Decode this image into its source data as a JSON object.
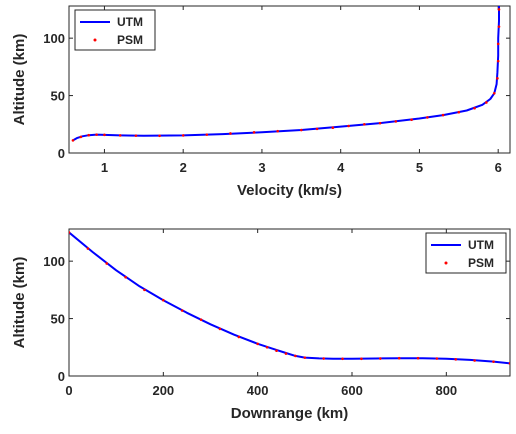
{
  "chart_data": [
    {
      "type": "line",
      "xlabel": "Velocity (km/s)",
      "ylabel": "Altitude (km)",
      "xlim": [
        0.55,
        6.15
      ],
      "ylim": [
        0,
        128
      ],
      "xticks": [
        1,
        2,
        3,
        4,
        5,
        6
      ],
      "yticks": [
        0,
        50,
        100
      ],
      "legend_position": "top-left",
      "series": [
        {
          "name": "UTM",
          "style": "solid line",
          "color": "#0000ff",
          "x": [
            0.6,
            0.65,
            0.72,
            0.8,
            0.9,
            1.0,
            1.2,
            1.5,
            2.0,
            2.5,
            3.0,
            3.5,
            4.0,
            4.5,
            5.0,
            5.3,
            5.6,
            5.8,
            5.9,
            5.95,
            5.98,
            5.99,
            6.0,
            6.0,
            6.01,
            6.01
          ],
          "y": [
            11,
            13,
            14.5,
            15.5,
            16,
            15.8,
            15.3,
            15,
            15.3,
            16.5,
            18,
            20,
            23,
            26,
            30,
            33,
            37,
            42,
            47,
            52,
            60,
            70,
            85,
            100,
            115,
            128
          ]
        },
        {
          "name": "PSM",
          "style": "dots",
          "color": "#ff0000",
          "x": [
            0.6,
            0.7,
            0.8,
            0.9,
            1.0,
            1.2,
            1.4,
            1.7,
            2.0,
            2.3,
            2.6,
            2.9,
            3.2,
            3.5,
            3.7,
            3.9,
            4.1,
            4.3,
            4.5,
            4.7,
            4.9,
            5.1,
            5.3,
            5.5,
            5.7,
            5.85,
            5.95,
            5.99,
            6.0,
            6.0,
            6.01,
            6.01
          ],
          "y": [
            11,
            14,
            15.5,
            16,
            15.8,
            15.3,
            15.1,
            15,
            15.3,
            16,
            17,
            18,
            19,
            20,
            21,
            22,
            23.5,
            25,
            26,
            27.5,
            29,
            31,
            33,
            35.5,
            39,
            44,
            52,
            65,
            80,
            95,
            110,
            125
          ]
        }
      ]
    },
    {
      "type": "line",
      "xlabel": "Downrange (km)",
      "ylabel": "Altitude (km)",
      "xlim": [
        0,
        935
      ],
      "ylim": [
        0,
        128
      ],
      "xticks": [
        0,
        200,
        400,
        600,
        800
      ],
      "yticks": [
        0,
        50,
        100
      ],
      "legend_position": "top-right",
      "series": [
        {
          "name": "UTM",
          "style": "solid line",
          "color": "#0000ff",
          "x": [
            0,
            50,
            100,
            150,
            200,
            250,
            300,
            350,
            400,
            430,
            460,
            480,
            500,
            530,
            560,
            600,
            650,
            700,
            750,
            800,
            850,
            900,
            935
          ],
          "y": [
            125,
            108,
            92,
            78,
            66,
            55,
            45,
            36,
            28,
            24,
            20,
            17.5,
            16,
            15.3,
            15,
            15,
            15.2,
            15.5,
            15.5,
            15,
            14,
            12.5,
            11
          ]
        },
        {
          "name": "PSM",
          "style": "dots",
          "color": "#ff0000",
          "x": [
            0,
            40,
            80,
            120,
            160,
            200,
            240,
            280,
            320,
            360,
            400,
            420,
            440,
            460,
            480,
            500,
            540,
            580,
            620,
            660,
            700,
            740,
            780,
            820,
            860,
            900,
            935
          ],
          "y": [
            125,
            111,
            98,
            86,
            75,
            66,
            57,
            49,
            41,
            34,
            28,
            25,
            22,
            19.5,
            17.5,
            16,
            15.2,
            15,
            15,
            15.2,
            15.5,
            15.5,
            15.2,
            14.5,
            13.5,
            12.5,
            11
          ]
        }
      ]
    }
  ]
}
